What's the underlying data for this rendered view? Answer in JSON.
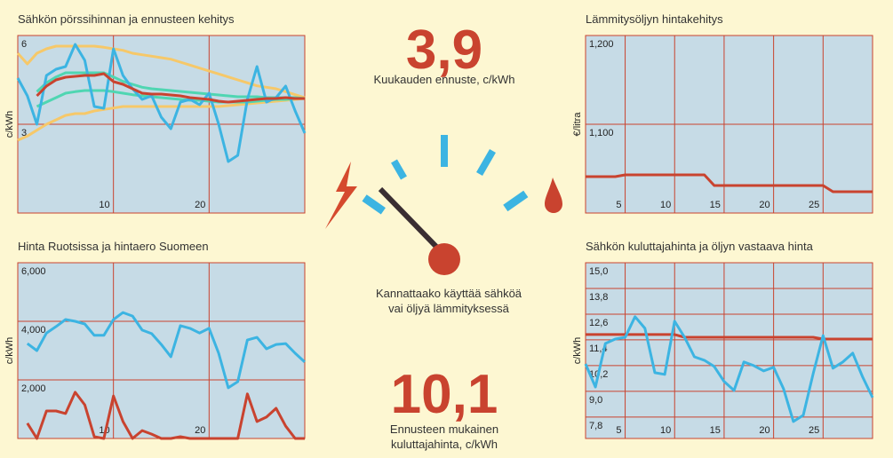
{
  "chart_data": [
    {
      "type": "line",
      "title": "Sähkön pörssihinnan ja ennusteen kehitys",
      "y_label": "c/kWh",
      "x": [
        0,
        1,
        2,
        3,
        4,
        5,
        6,
        7,
        8,
        9,
        10,
        11,
        12,
        13,
        14,
        15,
        16,
        17,
        18,
        19,
        20,
        21,
        22,
        23,
        24,
        25,
        26,
        27,
        28,
        29,
        30
      ],
      "xlim": [
        0,
        30
      ],
      "ylim": [
        0,
        6
      ],
      "xticks": [
        10,
        20
      ],
      "yticks": [
        3,
        6
      ],
      "grid": true,
      "series": [
        {
          "color": "#f6c869",
          "values": [
            5.4,
            5.04,
            5.4,
            5.55,
            5.64,
            5.64,
            5.64,
            5.64,
            5.64,
            5.6,
            5.55,
            5.5,
            5.4,
            5.35,
            5.3,
            5.25,
            5.2,
            5.1,
            5.0,
            4.9,
            4.8,
            4.7,
            4.6,
            4.5,
            4.4,
            4.3,
            4.25,
            4.2,
            4.1,
            4.0,
            3.9
          ]
        },
        {
          "color": "#f6c869",
          "values": [
            2.46,
            2.6,
            2.8,
            3.0,
            3.15,
            3.3,
            3.36,
            3.36,
            3.45,
            3.5,
            3.55,
            3.6,
            3.6,
            3.6,
            3.6,
            3.6,
            3.6,
            3.6,
            3.6,
            3.6,
            3.6,
            3.6,
            3.63,
            3.66,
            3.69,
            3.72,
            3.75,
            3.78,
            3.81,
            3.84,
            3.87
          ]
        },
        {
          "color": "#4fd6b2",
          "values": [
            null,
            null,
            4.1,
            4.4,
            4.6,
            4.74,
            4.74,
            4.74,
            4.74,
            4.74,
            4.6,
            4.45,
            4.35,
            4.25,
            4.2,
            4.17,
            4.14,
            4.11,
            4.08,
            4.05,
            4.02,
            3.99,
            3.96,
            3.93,
            3.93,
            3.93,
            3.9,
            3.9,
            3.9,
            3.9,
            3.87
          ]
        },
        {
          "color": "#4fd6b2",
          "values": [
            null,
            null,
            3.6,
            3.75,
            3.9,
            4.05,
            4.1,
            4.14,
            4.14,
            4.14,
            4.1,
            4.05,
            4.0,
            3.96,
            3.93,
            3.9,
            3.87,
            3.84,
            3.81,
            3.81,
            3.78,
            3.75,
            3.75,
            3.75,
            3.75,
            3.78,
            3.81,
            3.84,
            3.84,
            3.87,
            3.87
          ]
        },
        {
          "color": "#3cb4e2",
          "values": [
            4.56,
            3.96,
            3.0,
            4.65,
            4.86,
            4.95,
            5.7,
            5.16,
            3.6,
            3.54,
            5.55,
            4.65,
            4.2,
            3.84,
            3.96,
            3.24,
            2.85,
            3.75,
            3.84,
            3.66,
            4.05,
            3.0,
            1.74,
            1.95,
            3.84,
            4.95,
            3.75,
            3.9,
            4.29,
            3.45,
            2.7
          ]
        },
        {
          "color": "#c9432f",
          "values": [
            null,
            null,
            3.96,
            4.29,
            4.5,
            4.59,
            4.62,
            4.65,
            4.65,
            4.71,
            4.44,
            4.35,
            4.2,
            4.05,
            4.02,
            4.02,
            3.99,
            3.96,
            3.9,
            3.87,
            3.84,
            3.78,
            3.75,
            3.78,
            3.81,
            3.84,
            3.87,
            3.87,
            3.9,
            3.87,
            3.87
          ]
        }
      ]
    },
    {
      "type": "line",
      "title": "Lämmitysöljyn hintakehitys",
      "y_label": "€/litra",
      "x": [
        1,
        2,
        3,
        4,
        5,
        6,
        7,
        8,
        9,
        10,
        11,
        12,
        13,
        14,
        15,
        16,
        17,
        18,
        19,
        20,
        21,
        22,
        23,
        24,
        25,
        26,
        27,
        28,
        29,
        30
      ],
      "xlim": [
        1,
        30
      ],
      "ylim": [
        1.0,
        1.2
      ],
      "xticks": [
        5,
        10,
        15,
        20,
        25
      ],
      "yticks": [
        {
          "value": 1.1,
          "label": "1,100"
        },
        {
          "value": 1.2,
          "label": "1,200"
        }
      ],
      "grid": true,
      "series": [
        {
          "color": "#c9432f",
          "values": [
            1.041,
            1.041,
            1.041,
            1.041,
            1.043,
            1.043,
            1.043,
            1.043,
            1.043,
            1.043,
            1.043,
            1.043,
            1.043,
            1.031,
            1.031,
            1.031,
            1.031,
            1.031,
            1.031,
            1.031,
            1.031,
            1.031,
            1.031,
            1.031,
            1.031,
            1.024,
            1.024,
            1.024,
            1.024,
            1.024
          ]
        }
      ]
    },
    {
      "type": "line",
      "title": "Hinta Ruotsissa ja hintaero Suomeen",
      "y_label": "c/kWh",
      "x": [
        1,
        2,
        3,
        4,
        5,
        6,
        7,
        8,
        9,
        10,
        11,
        12,
        13,
        14,
        15,
        16,
        17,
        18,
        19,
        20,
        21,
        22,
        23,
        24,
        25,
        26,
        27,
        28,
        29,
        30
      ],
      "xlim": [
        0,
        30
      ],
      "ylim": [
        0,
        6
      ],
      "xticks": [
        10,
        20
      ],
      "yticks": [
        {
          "value": 2,
          "label": "2,000"
        },
        {
          "value": 4,
          "label": "4,000"
        },
        {
          "value": 6,
          "label": "6,000"
        }
      ],
      "grid": true,
      "series": [
        {
          "color": "#3cb4e2",
          "values": [
            3.24,
            3.0,
            3.6,
            3.82,
            4.06,
            4.0,
            3.91,
            3.52,
            3.52,
            4.06,
            4.3,
            4.18,
            3.7,
            3.58,
            3.21,
            2.79,
            3.85,
            3.76,
            3.6,
            3.76,
            2.91,
            1.73,
            1.94,
            3.36,
            3.45,
            3.06,
            3.21,
            3.24,
            2.91,
            2.61
          ]
        },
        {
          "color": "#c9432f",
          "values": [
            0.52,
            0,
            0.94,
            0.94,
            0.85,
            1.58,
            1.15,
            0.06,
            0,
            1.45,
            0.58,
            0,
            0.27,
            0.15,
            0,
            0,
            0.06,
            0,
            0,
            0,
            0,
            0,
            0,
            1.52,
            0.58,
            0.73,
            1.03,
            0.42,
            0,
            0
          ]
        }
      ]
    },
    {
      "type": "line",
      "title": "Sähkön kuluttajahinta ja öljyn vastaava hinta",
      "y_label": "c/kWh",
      "x": [
        1,
        2,
        3,
        4,
        5,
        6,
        7,
        8,
        9,
        10,
        11,
        12,
        13,
        14,
        15,
        16,
        17,
        18,
        19,
        20,
        21,
        22,
        23,
        24,
        25,
        26,
        27,
        28,
        29,
        30
      ],
      "xlim": [
        1,
        30
      ],
      "ylim": [
        6.8,
        15.0
      ],
      "xticks": [
        5,
        10,
        15,
        20,
        25
      ],
      "yticks": [
        {
          "value": 7.8,
          "label": "7,8"
        },
        {
          "value": 9.0,
          "label": "9,0"
        },
        {
          "value": 10.2,
          "label": "10,2"
        },
        {
          "value": 11.4,
          "label": "11,4"
        },
        {
          "value": 12.6,
          "label": "12,6"
        },
        {
          "value": 13.8,
          "label": "13,8"
        },
        {
          "value": 15.0,
          "label": "15,0"
        }
      ],
      "grid": true,
      "series": [
        {
          "color": "#c9432f",
          "values": [
            11.65,
            11.65,
            11.65,
            11.65,
            11.65,
            11.65,
            11.65,
            11.65,
            11.65,
            11.65,
            11.52,
            11.52,
            11.52,
            11.52,
            11.52,
            11.52,
            11.52,
            11.52,
            11.52,
            11.52,
            11.52,
            11.52,
            11.52,
            11.52,
            11.44,
            11.44,
            11.44,
            11.44,
            11.44,
            11.44
          ]
        },
        {
          "color": "#3cb4e2",
          "values": [
            10.28,
            9.2,
            11.23,
            11.44,
            11.52,
            12.48,
            11.94,
            9.87,
            9.79,
            12.27,
            11.52,
            10.61,
            10.45,
            10.16,
            9.46,
            9.04,
            10.37,
            10.2,
            9.95,
            10.12,
            9.12,
            7.59,
            7.88,
            9.83,
            11.6,
            10.08,
            10.37,
            10.78,
            9.66,
            8.71
          ]
        }
      ]
    }
  ],
  "indicators": {
    "monthly": {
      "value": "3,9",
      "caption": "Kuukauden ennuste, c/kWh"
    },
    "question": "Kannattaako käyttää sähköä vai öljyä lämmityksessä",
    "consumer": {
      "value": "10,1",
      "caption": "Ennusteen mukainen kuluttajahinta, c/kWh"
    }
  }
}
